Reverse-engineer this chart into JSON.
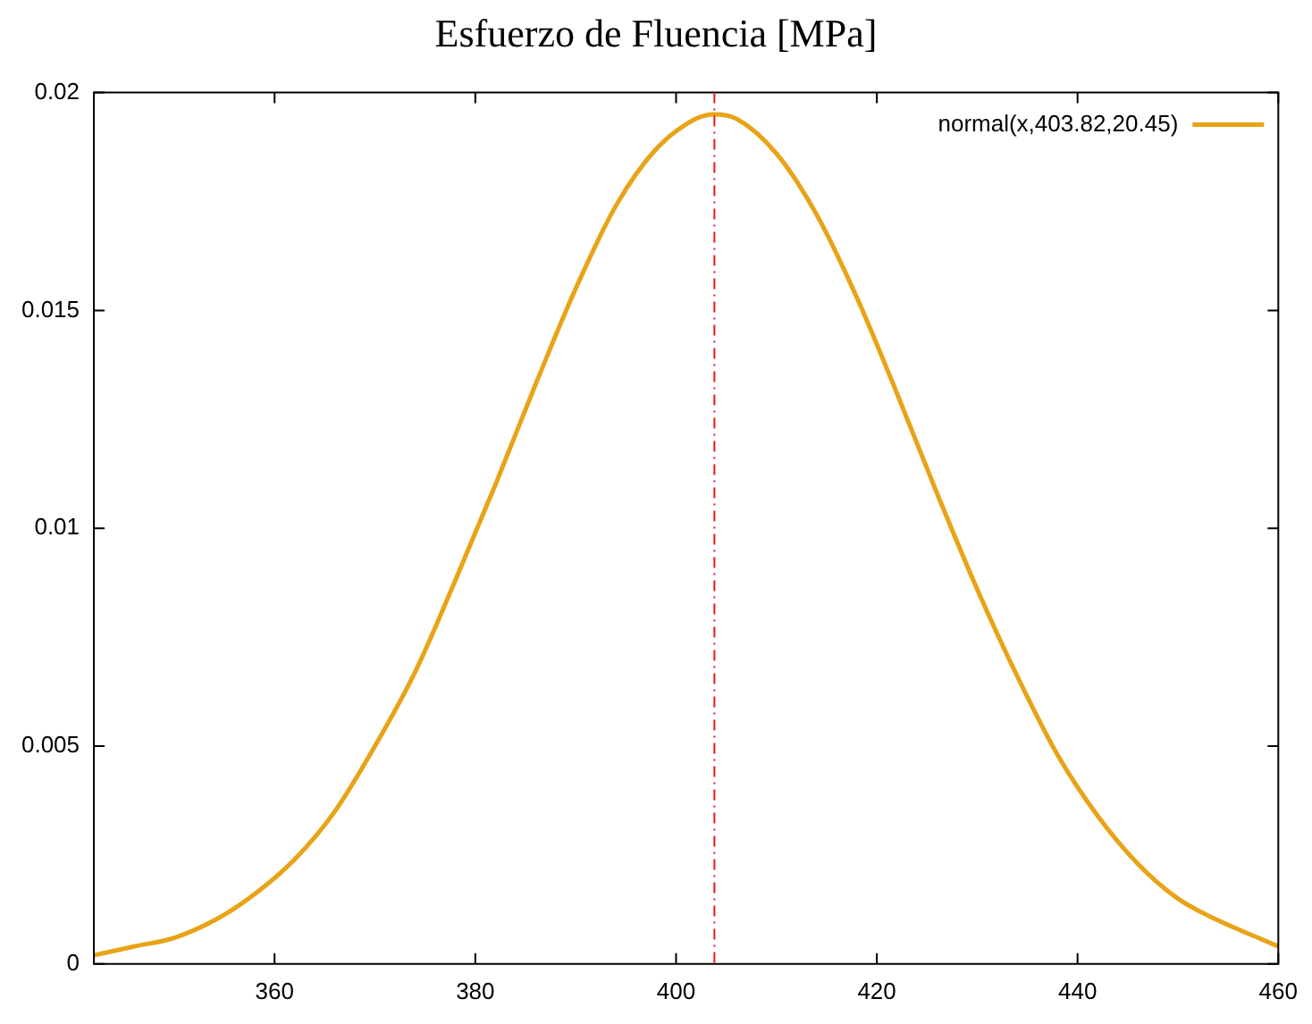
{
  "chart_data": {
    "type": "line",
    "title": "Esfuerzo de Fluencia [MPa]",
    "x": [
      342,
      346,
      350,
      354,
      358,
      362,
      366,
      370,
      374,
      378,
      382,
      386,
      390,
      394,
      398,
      402,
      403.82,
      406,
      410,
      414,
      418,
      422,
      426,
      430,
      434,
      438,
      442,
      446,
      450,
      454,
      458,
      460
    ],
    "series": [
      {
        "name": "normal(x,403.82,20.45)",
        "color": "#e8a317",
        "values": [
          0.0002,
          0.0004,
          0.0006,
          0.001,
          0.0016,
          0.0024,
          0.0035,
          0.005,
          0.0067,
          0.0088,
          0.011,
          0.0133,
          0.0155,
          0.0174,
          0.0187,
          0.0194,
          0.0195,
          0.0194,
          0.0186,
          0.0172,
          0.0153,
          0.0131,
          0.0108,
          0.0086,
          0.0066,
          0.0048,
          0.0034,
          0.0023,
          0.0015,
          0.001,
          0.0006,
          0.0004
        ]
      }
    ],
    "xlim": [
      342,
      460
    ],
    "xticks": [
      360,
      380,
      400,
      420,
      440,
      460
    ],
    "ylim": [
      0,
      0.02
    ],
    "yticks": [
      0,
      0.005,
      0.01,
      0.015,
      0.02
    ],
    "ref_lines": [
      {
        "axis": "x",
        "value": 403.82,
        "color": "#e41a1c",
        "line_style": "dashed"
      }
    ],
    "grid": false,
    "legend": "top right",
    "marker": "none",
    "line_style": "solid"
  }
}
